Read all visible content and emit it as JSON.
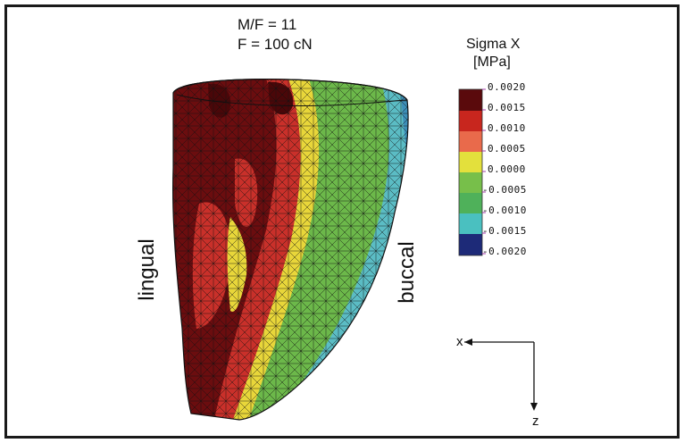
{
  "header": {
    "line1": "M/F = 11",
    "line2": "F = 100 cN"
  },
  "legend": {
    "title_line1": "Sigma X",
    "title_line2": "[MPa]",
    "ticks": [
      "0.0020",
      "0.0015",
      "0.0010",
      "0.0005",
      "0.0000",
      "-0.0005",
      "-0.0010",
      "-0.0015",
      "-0.0020"
    ],
    "colors": [
      "#5a0a0c",
      "#c8261e",
      "#e96a4b",
      "#e3e03c",
      "#77bf4a",
      "#4fb15a",
      "#4ac0c0",
      "#2f6fb0",
      "#1d2a78"
    ]
  },
  "labels": {
    "left": "lingual",
    "right": "buccal"
  },
  "axes": {
    "x": "x",
    "z": "z"
  },
  "colors": {
    "dark_red": "#6b0d0f",
    "red": "#c9302a",
    "yellow": "#e8d63a",
    "green": "#6cb84a",
    "cyan": "#5bbcc4",
    "mesh": "#1a1a1a"
  }
}
